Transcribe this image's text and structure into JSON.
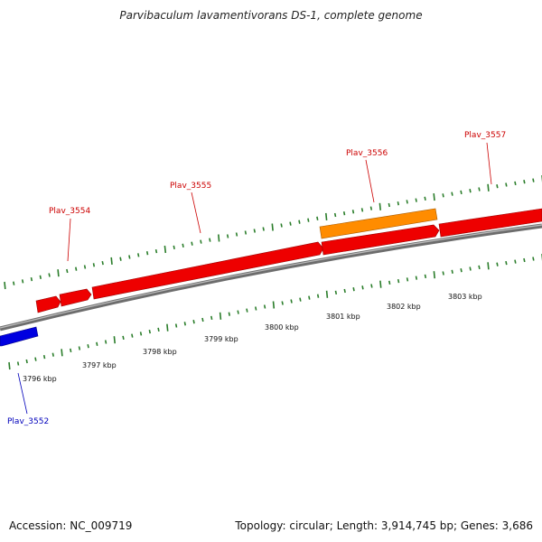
{
  "title": "Parvibaculum lavamentivorans DS-1, complete genome",
  "footer": {
    "accession": "Accession: NC_009719",
    "summary": "Topology: circular; Length: 3,914,745 bp; Genes: 3,686"
  },
  "colors": {
    "forward_gene": "#ee0000",
    "forward_gene_alt": "#ff8c00",
    "reverse_gene": "#0000e0",
    "backbone": "#7a7a7a",
    "ticks": "#2a7d2a",
    "forward_label": "#cc0000",
    "reverse_label": "#0000bb"
  },
  "axis": {
    "unit": "kbp",
    "tick_labels": [
      "3796 kbp",
      "3797 kbp",
      "3798 kbp",
      "3799 kbp",
      "3800 kbp",
      "3801 kbp",
      "3802 kbp",
      "3803 kbp"
    ]
  },
  "genes": [
    {
      "name": "Plav_3552",
      "strand": "-",
      "color": "reverse",
      "labeled": true
    },
    {
      "name": "",
      "strand": "+",
      "color": "forward",
      "labeled": false
    },
    {
      "name": "Plav_3554",
      "strand": "+",
      "color": "forward",
      "labeled": true
    },
    {
      "name": "Plav_3555",
      "strand": "+",
      "color": "forward",
      "labeled": true
    },
    {
      "name": "Plav_3556",
      "strand": "+",
      "color": "forward_alt",
      "labeled": true
    },
    {
      "name": "",
      "strand": "+",
      "color": "forward",
      "labeled": false
    },
    {
      "name": "Plav_3557",
      "strand": "+",
      "color": "forward",
      "labeled": true
    }
  ]
}
